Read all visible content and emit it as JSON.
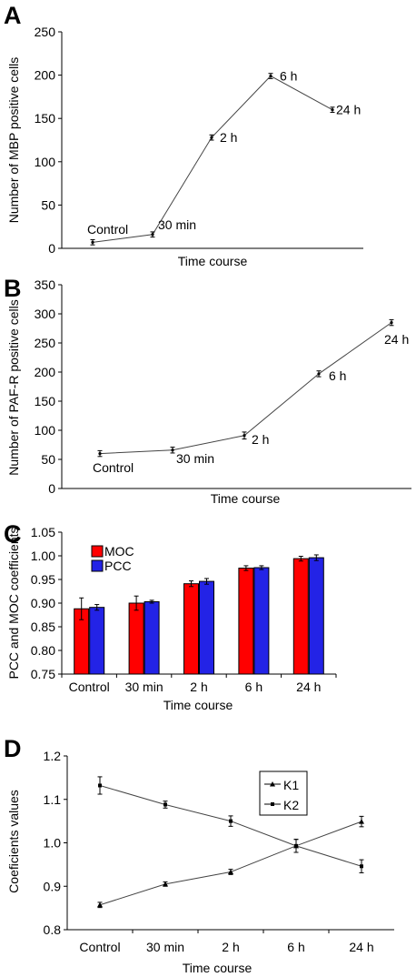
{
  "chart_data": [
    {
      "panel": "A",
      "type": "line",
      "xlabel": "Time course",
      "ylabel": "Number of MBP positive cells",
      "ylim": [
        0,
        250
      ],
      "yticks": [
        "0",
        "50",
        "100",
        "150",
        "200",
        "250"
      ],
      "grid": false,
      "series": [
        {
          "color": "#444444",
          "points": [
            {
              "x": "Control",
              "label": "Control",
              "y": 7,
              "err": 3
            },
            {
              "x": "30 min",
              "label": "30 min",
              "y": 16,
              "err": 3
            },
            {
              "x": "2 h",
              "label": "2 h",
              "y": 128,
              "err": 3
            },
            {
              "x": "6 h",
              "label": "6 h",
              "y": 199,
              "err": 3
            },
            {
              "x": "24 h",
              "label": "24 h",
              "y": 160,
              "err": 3
            }
          ]
        }
      ]
    },
    {
      "panel": "B",
      "type": "line",
      "xlabel": "Time course",
      "ylabel": "Number of PAF-R positive cells",
      "ylim": [
        0,
        350
      ],
      "yticks": [
        "0",
        "50",
        "100",
        "150",
        "200",
        "250",
        "300",
        "350"
      ],
      "grid": false,
      "series": [
        {
          "color": "#444444",
          "points": [
            {
              "x": "Control",
              "label": "Control",
              "y": 60,
              "err": 5
            },
            {
              "x": "30 min",
              "label": "30 min",
              "y": 66,
              "err": 5
            },
            {
              "x": "2 h",
              "label": "2 h",
              "y": 91,
              "err": 6
            },
            {
              "x": "6 h",
              "label": "6 h",
              "y": 197,
              "err": 5
            },
            {
              "x": "24 h",
              "label": "24 h",
              "y": 285,
              "err": 5
            }
          ]
        }
      ]
    },
    {
      "panel": "C",
      "type": "bar",
      "xlabel": "Time course",
      "ylabel": "PCC and MOC coefficients",
      "ylim": [
        0.75,
        1.05
      ],
      "yticks": [
        "0.75",
        "0.80",
        "0.85",
        "0.90",
        "0.95",
        "1.00",
        "1.05"
      ],
      "categories": [
        "Control",
        "30 min",
        "2 h",
        "6 h",
        "24 h"
      ],
      "legend_position": "top-left",
      "grid": false,
      "series": [
        {
          "name": "MOC",
          "color": "#ff0000",
          "values": [
            0.888,
            0.9,
            0.941,
            0.974,
            0.994
          ],
          "errors": [
            0.023,
            0.015,
            0.006,
            0.005,
            0.005
          ]
        },
        {
          "name": "PCC",
          "color": "#2323e6",
          "values": [
            0.891,
            0.903,
            0.946,
            0.975,
            0.996
          ],
          "errors": [
            0.006,
            0.003,
            0.006,
            0.004,
            0.006
          ]
        }
      ]
    },
    {
      "panel": "D",
      "type": "line",
      "xlabel": "Time course",
      "ylabel": "Coeficients values",
      "ylim": [
        0.8,
        1.2
      ],
      "yticks": [
        "0.8",
        "0.9",
        "1.0",
        "1.1",
        "1.2"
      ],
      "categories": [
        "Control",
        "30 min",
        "2 h",
        "6 h",
        "24 h"
      ],
      "legend_position": "top-right",
      "grid": false,
      "series": [
        {
          "name": "K1",
          "marker": "triangle",
          "color": "#444444",
          "values": [
            0.857,
            0.905,
            0.933,
            0.993,
            1.049
          ],
          "errors": [
            0.006,
            0.005,
            0.006,
            0.015,
            0.012
          ]
        },
        {
          "name": "K2",
          "marker": "square",
          "color": "#444444",
          "values": [
            1.132,
            1.088,
            1.05,
            0.993,
            0.946
          ],
          "errors": [
            0.02,
            0.008,
            0.012,
            0.015,
            0.015
          ]
        }
      ]
    }
  ]
}
